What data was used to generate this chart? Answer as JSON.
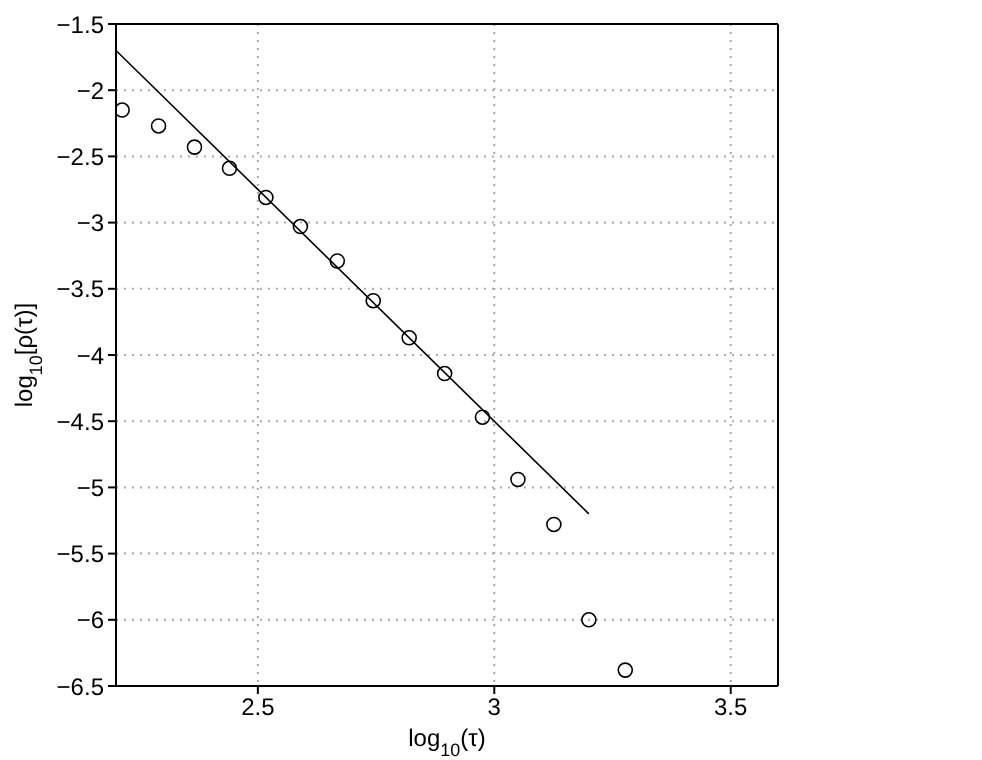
{
  "chart_data": {
    "type": "scatter",
    "xlabel": "log$_{10}$(τ)",
    "ylabel": "log$_{10}$[ρ(τ)]",
    "xlim": [
      2.2,
      3.6
    ],
    "xticks": [
      2.5,
      3,
      3.5
    ],
    "ylim": [
      -6.5,
      -1.5
    ],
    "yticks": [
      -6.5,
      -6,
      -5.5,
      -5,
      -4.5,
      -4,
      -3.5,
      -3,
      -2.5,
      -2,
      -1.5
    ],
    "grid": true,
    "series": [
      {
        "marker": "circle",
        "color": "#000000",
        "x": [
          2.213,
          2.29,
          2.366,
          2.44,
          2.517,
          2.59,
          2.668,
          2.744,
          2.82,
          2.895,
          2.975,
          3.05,
          3.126,
          3.2,
          3.277
        ],
        "values": [
          -2.15,
          -2.27,
          -2.43,
          -2.59,
          -2.81,
          -3.03,
          -3.29,
          -3.59,
          -3.87,
          -4.14,
          -4.47,
          -4.94,
          -5.28,
          -6.0,
          -6.38
        ]
      },
      {
        "type": "line",
        "marker": "none",
        "color": "#000000",
        "x": [
          2.2,
          3.2
        ],
        "values": [
          -1.7,
          -5.2
        ]
      }
    ]
  }
}
